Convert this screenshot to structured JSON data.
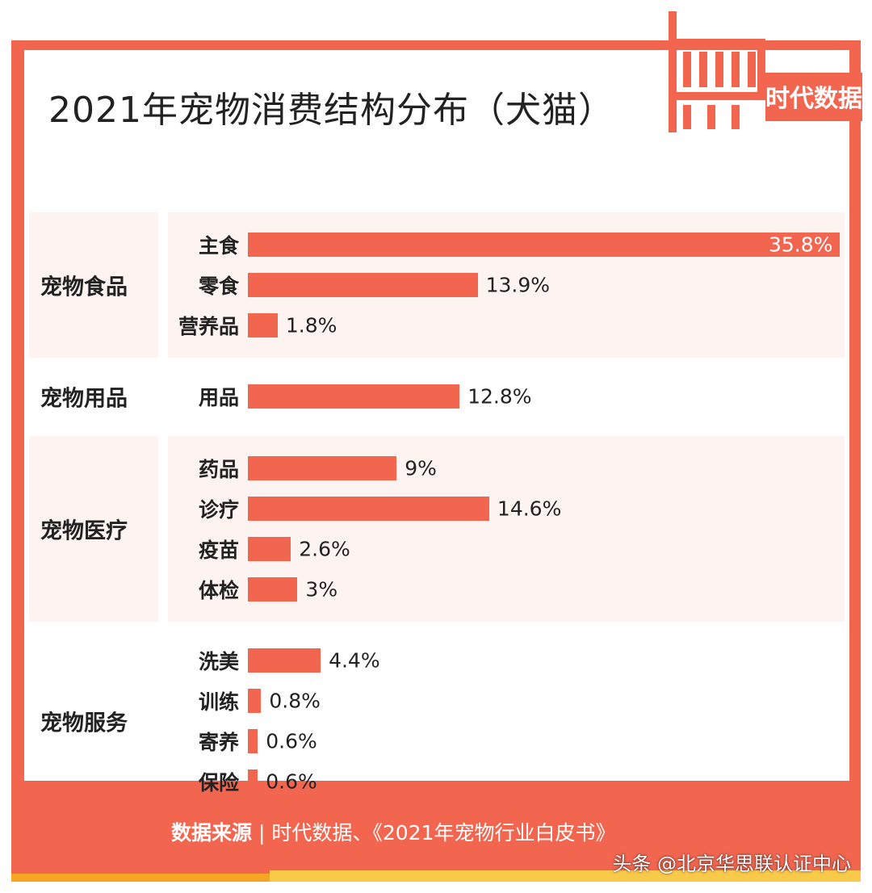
{
  "header": {
    "title": "2021年宠物消费结构分布（犬猫）"
  },
  "logo": {
    "brand_cn": "时代数据",
    "accent": "#f26650"
  },
  "colors": {
    "bar": "#f26650",
    "group_bg": "#fdf3f0",
    "frame": "#f26650"
  },
  "footer": {
    "source_label": "数据来源",
    "separator": "|",
    "source_text": "时代数据、《2021年宠物行业白皮书》",
    "watermark": "头条 @北京华思联认证中心"
  },
  "chart_data": {
    "type": "bar",
    "orientation": "horizontal",
    "unit": "%",
    "xlim": [
      0,
      35.8
    ],
    "groups": [
      {
        "name": "宠物食品",
        "items": [
          {
            "label": "主食",
            "value": 35.8,
            "value_label": "35.8%"
          },
          {
            "label": "零食",
            "value": 13.9,
            "value_label": "13.9%"
          },
          {
            "label": "营养品",
            "value": 1.8,
            "value_label": "1.8%"
          }
        ]
      },
      {
        "name": "宠物用品",
        "items": [
          {
            "label": "用品",
            "value": 12.8,
            "value_label": "12.8%"
          }
        ]
      },
      {
        "name": "宠物医疗",
        "items": [
          {
            "label": "药品",
            "value": 9,
            "value_label": "9%"
          },
          {
            "label": "诊疗",
            "value": 14.6,
            "value_label": "14.6%"
          },
          {
            "label": "疫苗",
            "value": 2.6,
            "value_label": "2.6%"
          },
          {
            "label": "体检",
            "value": 3,
            "value_label": "3%"
          }
        ]
      },
      {
        "name": "宠物服务",
        "items": [
          {
            "label": "洗美",
            "value": 4.4,
            "value_label": "4.4%"
          },
          {
            "label": "训练",
            "value": 0.8,
            "value_label": "0.8%"
          },
          {
            "label": "寄养",
            "value": 0.6,
            "value_label": "0.6%"
          },
          {
            "label": "保险",
            "value": 0.6,
            "value_label": "0.6%"
          }
        ]
      }
    ]
  }
}
